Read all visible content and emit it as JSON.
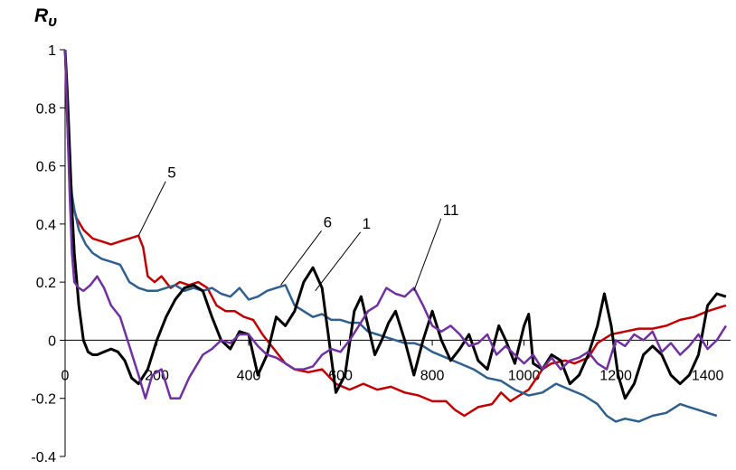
{
  "chart_data": {
    "type": "line",
    "ylabel": "Rυ",
    "xlim": [
      0,
      1450
    ],
    "ylim": [
      -0.4,
      1
    ],
    "x_ticks": [
      0,
      200,
      400,
      600,
      800,
      1000,
      1200,
      1400
    ],
    "x_tick_labels": [
      "0",
      "200",
      "400",
      "600",
      "800",
      "1000",
      "1200",
      "1400"
    ],
    "y_ticks": [
      -0.4,
      -0.2,
      0,
      0.2,
      0.4,
      0.6,
      0.8,
      1
    ],
    "y_tick_labels": [
      "-0.4",
      "-0.2",
      "0",
      "0.2",
      "0.4",
      "0.6",
      "0.8",
      "1"
    ],
    "grid": false,
    "series": [
      {
        "name": "5",
        "color": "#c00000",
        "points": [
          [
            0,
            1
          ],
          [
            5,
            0.75
          ],
          [
            10,
            0.55
          ],
          [
            15,
            0.47
          ],
          [
            25,
            0.42
          ],
          [
            40,
            0.38
          ],
          [
            60,
            0.35
          ],
          [
            80,
            0.34
          ],
          [
            100,
            0.33
          ],
          [
            120,
            0.34
          ],
          [
            140,
            0.35
          ],
          [
            160,
            0.36
          ],
          [
            170,
            0.32
          ],
          [
            180,
            0.22
          ],
          [
            195,
            0.2
          ],
          [
            210,
            0.22
          ],
          [
            230,
            0.18
          ],
          [
            250,
            0.2
          ],
          [
            270,
            0.19
          ],
          [
            290,
            0.2
          ],
          [
            310,
            0.18
          ],
          [
            330,
            0.12
          ],
          [
            350,
            0.1
          ],
          [
            370,
            0.1
          ],
          [
            390,
            0.08
          ],
          [
            410,
            0.07
          ],
          [
            430,
            0.02
          ],
          [
            450,
            -0.02
          ],
          [
            480,
            -0.08
          ],
          [
            500,
            -0.1
          ],
          [
            530,
            -0.11
          ],
          [
            560,
            -0.1
          ],
          [
            590,
            -0.15
          ],
          [
            620,
            -0.17
          ],
          [
            650,
            -0.15
          ],
          [
            680,
            -0.17
          ],
          [
            710,
            -0.16
          ],
          [
            740,
            -0.18
          ],
          [
            770,
            -0.19
          ],
          [
            800,
            -0.21
          ],
          [
            830,
            -0.21
          ],
          [
            850,
            -0.24
          ],
          [
            870,
            -0.26
          ],
          [
            900,
            -0.23
          ],
          [
            930,
            -0.22
          ],
          [
            950,
            -0.18
          ],
          [
            970,
            -0.21
          ],
          [
            990,
            -0.19
          ],
          [
            1010,
            -0.17
          ],
          [
            1040,
            -0.1
          ],
          [
            1060,
            -0.08
          ],
          [
            1090,
            -0.07
          ],
          [
            1110,
            -0.08
          ],
          [
            1140,
            -0.06
          ],
          [
            1160,
            -0.01
          ],
          [
            1190,
            0.02
          ],
          [
            1220,
            0.03
          ],
          [
            1250,
            0.04
          ],
          [
            1280,
            0.04
          ],
          [
            1310,
            0.05
          ],
          [
            1340,
            0.07
          ],
          [
            1370,
            0.08
          ],
          [
            1400,
            0.1
          ],
          [
            1420,
            0.11
          ],
          [
            1440,
            0.12
          ]
        ]
      },
      {
        "name": "6",
        "color": "#2e5f8e",
        "points": [
          [
            0,
            1
          ],
          [
            5,
            0.8
          ],
          [
            10,
            0.6
          ],
          [
            15,
            0.5
          ],
          [
            20,
            0.45
          ],
          [
            30,
            0.38
          ],
          [
            45,
            0.33
          ],
          [
            60,
            0.3
          ],
          [
            80,
            0.28
          ],
          [
            100,
            0.27
          ],
          [
            120,
            0.26
          ],
          [
            140,
            0.2
          ],
          [
            160,
            0.18
          ],
          [
            180,
            0.17
          ],
          [
            200,
            0.17
          ],
          [
            220,
            0.18
          ],
          [
            240,
            0.19
          ],
          [
            260,
            0.17
          ],
          [
            280,
            0.18
          ],
          [
            300,
            0.17
          ],
          [
            320,
            0.18
          ],
          [
            340,
            0.16
          ],
          [
            360,
            0.15
          ],
          [
            380,
            0.18
          ],
          [
            400,
            0.14
          ],
          [
            420,
            0.15
          ],
          [
            440,
            0.17
          ],
          [
            460,
            0.18
          ],
          [
            480,
            0.19
          ],
          [
            500,
            0.12
          ],
          [
            520,
            0.1
          ],
          [
            540,
            0.08
          ],
          [
            560,
            0.09
          ],
          [
            580,
            0.07
          ],
          [
            600,
            0.07
          ],
          [
            620,
            0.06
          ],
          [
            640,
            0.06
          ],
          [
            660,
            0.03
          ],
          [
            680,
            0.02
          ],
          [
            700,
            0.01
          ],
          [
            720,
            0
          ],
          [
            740,
            -0.01
          ],
          [
            760,
            -0.01
          ],
          [
            780,
            -0.02
          ],
          [
            800,
            -0.04
          ],
          [
            830,
            -0.06
          ],
          [
            860,
            -0.08
          ],
          [
            890,
            -0.1
          ],
          [
            920,
            -0.13
          ],
          [
            950,
            -0.14
          ],
          [
            980,
            -0.17
          ],
          [
            1010,
            -0.19
          ],
          [
            1040,
            -0.18
          ],
          [
            1070,
            -0.15
          ],
          [
            1100,
            -0.17
          ],
          [
            1130,
            -0.19
          ],
          [
            1160,
            -0.22
          ],
          [
            1180,
            -0.26
          ],
          [
            1200,
            -0.28
          ],
          [
            1220,
            -0.27
          ],
          [
            1250,
            -0.28
          ],
          [
            1280,
            -0.26
          ],
          [
            1310,
            -0.25
          ],
          [
            1340,
            -0.22
          ],
          [
            1360,
            -0.23
          ],
          [
            1380,
            -0.24
          ],
          [
            1400,
            -0.25
          ],
          [
            1420,
            -0.26
          ]
        ]
      },
      {
        "name": "1",
        "color": "#000000",
        "points": [
          [
            0,
            1
          ],
          [
            5,
            0.85
          ],
          [
            10,
            0.65
          ],
          [
            15,
            0.45
          ],
          [
            20,
            0.3
          ],
          [
            30,
            0.12
          ],
          [
            40,
            0
          ],
          [
            50,
            -0.04
          ],
          [
            60,
            -0.05
          ],
          [
            70,
            -0.05
          ],
          [
            85,
            -0.04
          ],
          [
            100,
            -0.03
          ],
          [
            115,
            -0.04
          ],
          [
            130,
            -0.07
          ],
          [
            145,
            -0.13
          ],
          [
            160,
            -0.15
          ],
          [
            180,
            -0.1
          ],
          [
            200,
            0
          ],
          [
            220,
            0.08
          ],
          [
            240,
            0.14
          ],
          [
            260,
            0.18
          ],
          [
            280,
            0.19
          ],
          [
            300,
            0.17
          ],
          [
            320,
            0.08
          ],
          [
            340,
            0
          ],
          [
            360,
            -0.03
          ],
          [
            380,
            0.03
          ],
          [
            400,
            0.02
          ],
          [
            420,
            -0.12
          ],
          [
            440,
            -0.05
          ],
          [
            460,
            0.08
          ],
          [
            480,
            0.05
          ],
          [
            500,
            0.1
          ],
          [
            520,
            0.2
          ],
          [
            540,
            0.25
          ],
          [
            560,
            0.18
          ],
          [
            575,
            0
          ],
          [
            590,
            -0.18
          ],
          [
            610,
            -0.12
          ],
          [
            630,
            0.1
          ],
          [
            645,
            0.15
          ],
          [
            660,
            0.05
          ],
          [
            675,
            -0.05
          ],
          [
            690,
            0
          ],
          [
            705,
            0.06
          ],
          [
            720,
            0.1
          ],
          [
            740,
            0
          ],
          [
            760,
            -0.12
          ],
          [
            780,
            0
          ],
          [
            800,
            0.1
          ],
          [
            820,
            0
          ],
          [
            840,
            -0.07
          ],
          [
            860,
            -0.03
          ],
          [
            880,
            0.02
          ],
          [
            900,
            -0.07
          ],
          [
            920,
            -0.1
          ],
          [
            945,
            0.05
          ],
          [
            960,
            0
          ],
          [
            980,
            -0.08
          ],
          [
            1000,
            0.05
          ],
          [
            1010,
            0.09
          ],
          [
            1020,
            -0.08
          ],
          [
            1040,
            -0.1
          ],
          [
            1060,
            -0.05
          ],
          [
            1080,
            -0.07
          ],
          [
            1100,
            -0.15
          ],
          [
            1120,
            -0.12
          ],
          [
            1140,
            -0.05
          ],
          [
            1160,
            0.05
          ],
          [
            1175,
            0.16
          ],
          [
            1190,
            0.05
          ],
          [
            1205,
            -0.12
          ],
          [
            1220,
            -0.2
          ],
          [
            1240,
            -0.15
          ],
          [
            1260,
            -0.05
          ],
          [
            1280,
            -0.02
          ],
          [
            1300,
            -0.05
          ],
          [
            1320,
            -0.12
          ],
          [
            1340,
            -0.15
          ],
          [
            1360,
            -0.12
          ],
          [
            1380,
            -0.05
          ],
          [
            1400,
            0.12
          ],
          [
            1420,
            0.16
          ],
          [
            1440,
            0.15
          ]
        ]
      },
      {
        "name": "11",
        "color": "#7030a0",
        "points": [
          [
            0,
            1
          ],
          [
            5,
            0.75
          ],
          [
            10,
            0.5
          ],
          [
            15,
            0.3
          ],
          [
            20,
            0.2
          ],
          [
            30,
            0.18
          ],
          [
            40,
            0.17
          ],
          [
            55,
            0.19
          ],
          [
            70,
            0.22
          ],
          [
            85,
            0.18
          ],
          [
            100,
            0.12
          ],
          [
            120,
            0.08
          ],
          [
            140,
            -0.02
          ],
          [
            160,
            -0.12
          ],
          [
            175,
            -0.2
          ],
          [
            190,
            -0.12
          ],
          [
            210,
            -0.1
          ],
          [
            230,
            -0.2
          ],
          [
            250,
            -0.2
          ],
          [
            270,
            -0.13
          ],
          [
            300,
            -0.05
          ],
          [
            320,
            -0.03
          ],
          [
            340,
            0
          ],
          [
            360,
            -0.01
          ],
          [
            380,
            0.02
          ],
          [
            400,
            0.02
          ],
          [
            420,
            -0.02
          ],
          [
            440,
            -0.05
          ],
          [
            460,
            -0.06
          ],
          [
            480,
            -0.08
          ],
          [
            500,
            -0.1
          ],
          [
            520,
            -0.1
          ],
          [
            540,
            -0.09
          ],
          [
            560,
            -0.05
          ],
          [
            580,
            -0.03
          ],
          [
            600,
            -0.04
          ],
          [
            620,
            0
          ],
          [
            640,
            0.05
          ],
          [
            660,
            0.1
          ],
          [
            680,
            0.12
          ],
          [
            700,
            0.18
          ],
          [
            720,
            0.16
          ],
          [
            740,
            0.15
          ],
          [
            760,
            0.18
          ],
          [
            780,
            0.12
          ],
          [
            800,
            0.05
          ],
          [
            820,
            0.03
          ],
          [
            840,
            0.05
          ],
          [
            860,
            0.02
          ],
          [
            880,
            -0.02
          ],
          [
            900,
            -0.01
          ],
          [
            920,
            0.02
          ],
          [
            940,
            -0.05
          ],
          [
            960,
            -0.02
          ],
          [
            980,
            -0.05
          ],
          [
            1000,
            -0.08
          ],
          [
            1020,
            -0.05
          ],
          [
            1040,
            -0.1
          ],
          [
            1060,
            -0.06
          ],
          [
            1080,
            -0.1
          ],
          [
            1100,
            -0.07
          ],
          [
            1120,
            -0.06
          ],
          [
            1140,
            -0.04
          ],
          [
            1160,
            -0.08
          ],
          [
            1180,
            -0.1
          ],
          [
            1200,
            0
          ],
          [
            1220,
            -0.02
          ],
          [
            1240,
            0.02
          ],
          [
            1260,
            0
          ],
          [
            1280,
            0.03
          ],
          [
            1300,
            -0.04
          ],
          [
            1320,
            -0.01
          ],
          [
            1340,
            -0.05
          ],
          [
            1360,
            -0.02
          ],
          [
            1380,
            0.02
          ],
          [
            1400,
            -0.03
          ],
          [
            1420,
            0
          ],
          [
            1440,
            0.05
          ]
        ]
      }
    ],
    "annotations": [
      {
        "text": "5",
        "series": "5"
      },
      {
        "text": "6",
        "series": "6"
      },
      {
        "text": "1",
        "series": "1"
      },
      {
        "text": "11",
        "series": "11"
      }
    ]
  }
}
